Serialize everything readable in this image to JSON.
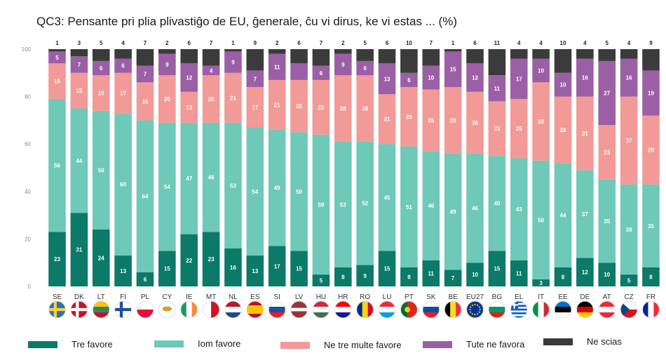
{
  "title": "QC3: Pensante pri plia plivastiĝo de EU, ĝenerale, ĉu vi dirus, ke vi estas ... (%)",
  "colors": {
    "tre_favore": "#0b7a68",
    "iom_favore": "#6ec9b8",
    "ne_tre_multe": "#f29a97",
    "tute_ne": "#9b5fa6",
    "ne_scias": "#3b3b3b",
    "axis_text": "#8a8a8a",
    "eu_highlight": "#0b7a68"
  },
  "chart_data": {
    "type": "bar",
    "stacked": true,
    "title": "QC3: Pensante pri plia plivastiĝo de EU, ĝenerale, ĉu vi dirus, ke vi estas ... (%)",
    "xlabel": "",
    "ylabel": "",
    "ylim": [
      0,
      100
    ],
    "yticks": [
      0,
      20,
      40,
      60,
      80,
      100
    ],
    "grid": false,
    "legend_position": "bottom",
    "categories": [
      "SE",
      "DK",
      "LT",
      "FI",
      "PL",
      "CY",
      "IE",
      "MT",
      "NL",
      "ES",
      "SI",
      "LV",
      "HU",
      "HR",
      "RO",
      "LU",
      "PT",
      "SK",
      "BE",
      "EU27",
      "BG",
      "EL",
      "IT",
      "EE",
      "DE",
      "AT",
      "CZ",
      "FR"
    ],
    "series": [
      {
        "key": "tre_favore",
        "name": "Tre favore",
        "values": [
          23,
          31,
          24,
          13,
          6,
          15,
          22,
          23,
          16,
          13,
          17,
          15,
          5,
          8,
          9,
          15,
          8,
          11,
          7,
          10,
          15,
          11,
          3,
          8,
          12,
          10,
          5,
          8
        ]
      },
      {
        "key": "iom_favore",
        "name": "Iom favore",
        "values": [
          56,
          44,
          50,
          60,
          64,
          54,
          47,
          46,
          53,
          54,
          49,
          50,
          59,
          53,
          52,
          45,
          51,
          46,
          49,
          46,
          40,
          43,
          50,
          44,
          37,
          35,
          38,
          35
        ]
      },
      {
        "key": "ne_tre_multe",
        "name": "Ne tre multe favore",
        "values": [
          15,
          15,
          15,
          17,
          16,
          20,
          13,
          20,
          21,
          17,
          21,
          22,
          23,
          28,
          28,
          21,
          25,
          26,
          28,
          26,
          23,
          25,
          33,
          28,
          31,
          23,
          37,
          29
        ]
      },
      {
        "key": "tute_ne",
        "name": "Tute ne favora",
        "values": [
          5,
          7,
          6,
          6,
          7,
          9,
          12,
          4,
          9,
          7,
          11,
          7,
          6,
          9,
          6,
          13,
          6,
          10,
          15,
          12,
          11,
          17,
          10,
          10,
          16,
          27,
          16,
          19
        ]
      },
      {
        "key": "ne_scias",
        "name": "Ne scias",
        "values": [
          1,
          3,
          5,
          4,
          7,
          2,
          6,
          7,
          1,
          9,
          2,
          6,
          7,
          2,
          5,
          6,
          10,
          7,
          1,
          6,
          11,
          4,
          4,
          10,
          4,
          5,
          4,
          9
        ]
      }
    ],
    "label_series": [
      "tre_favore",
      "iom_favore",
      "ne_tre_multe",
      "tute_ne"
    ],
    "top_label_series": "ne_scias",
    "hidden_labels": [
      [
        11,
        3
      ]
    ]
  },
  "flags": {
    "SE": {
      "type": "nordic",
      "bg": "#2f6fb4",
      "cross": "#f4d03f"
    },
    "DK": {
      "type": "nordic",
      "bg": "#c8102e",
      "cross": "#ffffff"
    },
    "LT": {
      "type": "h",
      "colors": [
        "#f5c518",
        "#2e8b57",
        "#c8102e"
      ]
    },
    "FI": {
      "type": "nordic",
      "bg": "#ffffff",
      "cross": "#1b4f9c"
    },
    "PL": {
      "type": "h",
      "colors": [
        "#ffffff",
        "#dc143c"
      ]
    },
    "CY": {
      "type": "cy",
      "bg": "#ffffff",
      "fg": "#d99a2b"
    },
    "IE": {
      "type": "v",
      "colors": [
        "#169b62",
        "#ffffff",
        "#ff883e"
      ]
    },
    "MT": {
      "type": "v",
      "colors": [
        "#ffffff",
        "#cf142b"
      ]
    },
    "NL": {
      "type": "h",
      "colors": [
        "#ae1c28",
        "#ffffff",
        "#21468b"
      ]
    },
    "ES": {
      "type": "hw",
      "colors": [
        "#c60b1e",
        "#ffc400",
        "#c60b1e"
      ],
      "weights": [
        1,
        2,
        1
      ]
    },
    "SI": {
      "type": "h",
      "colors": [
        "#ffffff",
        "#1c4fa0",
        "#ed1c24"
      ]
    },
    "LV": {
      "type": "hw",
      "colors": [
        "#9e3039",
        "#ffffff",
        "#9e3039"
      ],
      "weights": [
        2,
        1,
        2
      ]
    },
    "HU": {
      "type": "h",
      "colors": [
        "#cd2a3e",
        "#ffffff",
        "#436f4d"
      ]
    },
    "HR": {
      "type": "h",
      "colors": [
        "#ff0000",
        "#ffffff",
        "#171796"
      ]
    },
    "RO": {
      "type": "v",
      "colors": [
        "#002b7f",
        "#fcd116",
        "#ce1126"
      ]
    },
    "LU": {
      "type": "h",
      "colors": [
        "#ed2939",
        "#ffffff",
        "#00a1de"
      ]
    },
    "PT": {
      "type": "pt",
      "colors": [
        "#046a38",
        "#da291c"
      ],
      "emblem": "#ffcc00"
    },
    "SK": {
      "type": "h",
      "colors": [
        "#ffffff",
        "#0b4ea2",
        "#ee1c25"
      ]
    },
    "BE": {
      "type": "v",
      "colors": [
        "#000000",
        "#fdda24",
        "#ef3340"
      ]
    },
    "EU27": {
      "type": "eu",
      "bg": "#003399",
      "star": "#ffcc00"
    },
    "BG": {
      "type": "h",
      "colors": [
        "#ffffff",
        "#00966e",
        "#d62612"
      ]
    },
    "EL": {
      "type": "stripes",
      "colors": [
        "#0d5eaf",
        "#ffffff"
      ]
    },
    "IT": {
      "type": "v",
      "colors": [
        "#009246",
        "#ffffff",
        "#ce2b37"
      ]
    },
    "EE": {
      "type": "h",
      "colors": [
        "#0072ce",
        "#000000",
        "#ffffff"
      ]
    },
    "DE": {
      "type": "h",
      "colors": [
        "#000000",
        "#dd0000",
        "#ffce00"
      ]
    },
    "AT": {
      "type": "h",
      "colors": [
        "#ed2939",
        "#ffffff",
        "#ed2939"
      ]
    },
    "CZ": {
      "type": "cz",
      "colors": [
        "#ffffff",
        "#d7141a"
      ],
      "tri": "#11457e"
    },
    "FR": {
      "type": "v",
      "colors": [
        "#002395",
        "#ffffff",
        "#ed2939"
      ]
    }
  },
  "legend": [
    {
      "key": "tre_favore",
      "label": "Tre favore"
    },
    {
      "key": "iom_favore",
      "label": "Iom favore"
    },
    {
      "key": "ne_tre_multe",
      "label": "Ne tre multe favore"
    },
    {
      "key": "tute_ne",
      "label": "Tute ne favora"
    },
    {
      "key": "ne_scias",
      "label": "Ne scias"
    }
  ]
}
